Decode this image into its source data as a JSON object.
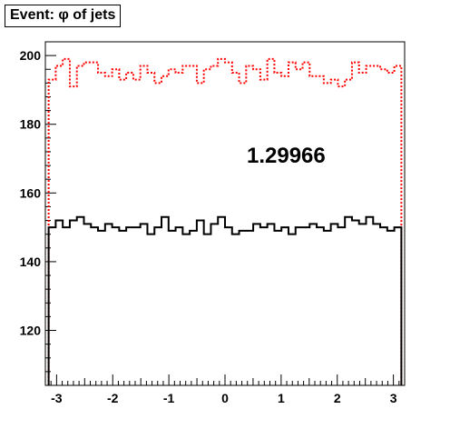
{
  "title": "Event: φ of jets",
  "chart_data": {
    "type": "line",
    "title": "Event: φ of jets",
    "xlabel": "",
    "ylabel": "",
    "xlim": [
      -3.2,
      3.2
    ],
    "ylim": [
      104,
      204
    ],
    "x_ticks": [
      -3,
      -2,
      -1,
      0,
      1,
      2,
      3
    ],
    "x_tick_labels": [
      "-3",
      "-2",
      "-1",
      "0",
      "1",
      "2",
      "3"
    ],
    "y_ticks": [
      120,
      140,
      160,
      180,
      200
    ],
    "y_tick_labels": [
      "120",
      "140",
      "160",
      "180",
      "200"
    ],
    "annotation": "1.29966",
    "bin_edges": [
      -3.1416,
      3.1416
    ],
    "n_bins": 50,
    "grid": false,
    "series": [
      {
        "color": "#ff0000",
        "style": "dotted-step",
        "values": [
          193,
          197,
          199,
          191,
          197,
          198,
          198,
          195,
          194,
          196,
          193,
          195,
          193,
          197,
          195,
          192,
          194,
          196,
          195,
          197,
          197,
          192,
          196,
          197,
          199,
          198,
          195,
          192,
          197,
          196,
          193,
          199,
          195,
          194,
          198,
          196,
          198,
          194,
          194,
          192,
          193,
          191,
          193,
          198,
          195,
          197,
          197,
          196,
          195,
          197
        ]
      },
      {
        "color": "#000000",
        "style": "solid-step",
        "values": [
          150,
          152,
          150,
          152,
          153,
          151,
          150,
          149,
          151,
          150,
          149,
          150,
          150,
          151,
          148,
          150,
          153,
          149,
          150,
          148,
          149,
          152,
          148,
          151,
          153,
          150,
          148,
          149,
          149,
          151,
          150,
          151,
          149,
          150,
          148,
          150,
          150,
          151,
          150,
          149,
          151,
          150,
          153,
          152,
          151,
          153,
          151,
          150,
          149,
          150
        ]
      }
    ]
  }
}
